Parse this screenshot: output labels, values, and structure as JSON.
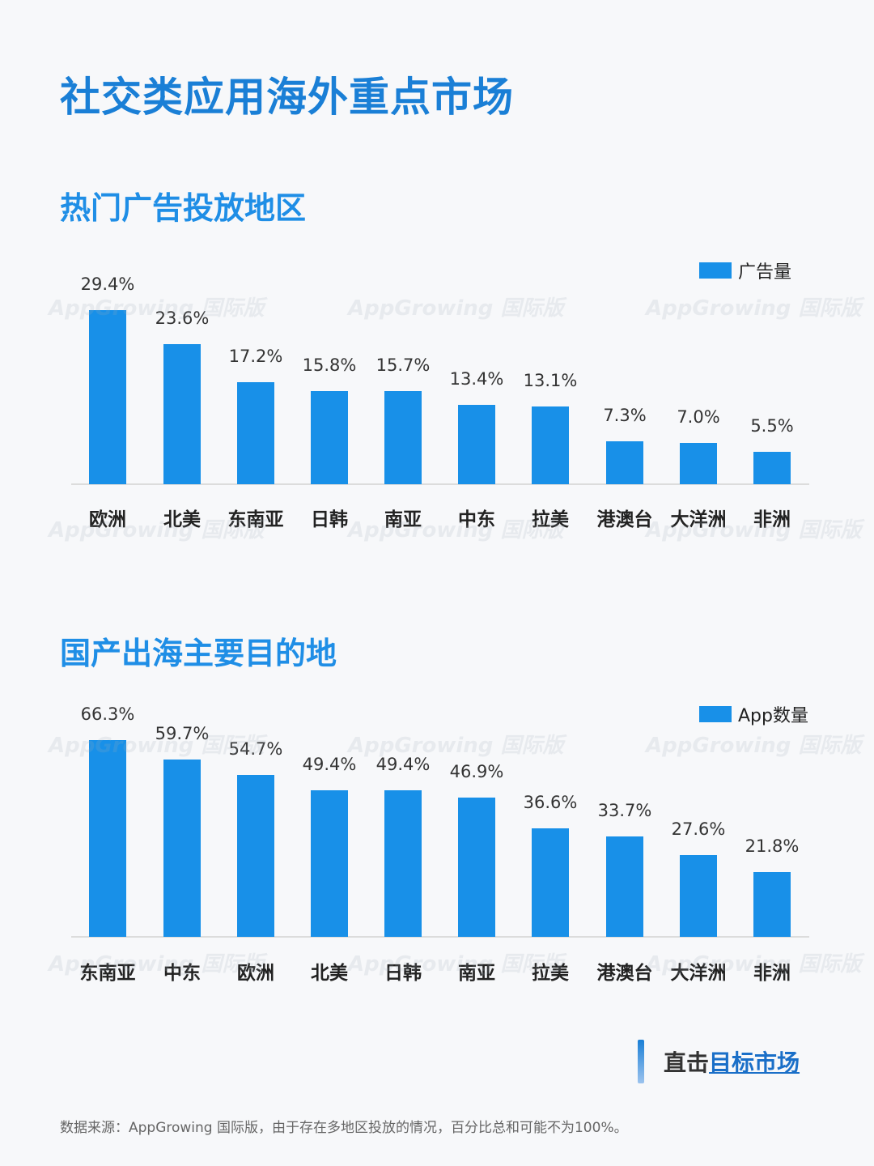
{
  "title": "社交类应用海外重点市场",
  "watermark": "AppGrowing 国际版",
  "chart_data": [
    {
      "type": "bar",
      "title": "热门广告投放地区",
      "categories": [
        "欧洲",
        "北美",
        "东南亚",
        "日韩",
        "南亚",
        "中东",
        "拉美",
        "港澳台",
        "大洋洲",
        "非洲"
      ],
      "series": [
        {
          "name": "广告量",
          "values": [
            29.4,
            23.6,
            17.2,
            15.8,
            15.7,
            13.4,
            13.1,
            7.3,
            7.0,
            5.5
          ]
        }
      ],
      "value_labels": [
        "29.4%",
        "23.6%",
        "17.2%",
        "15.8%",
        "15.7%",
        "13.4%",
        "13.1%",
        "7.3%",
        "7.0%",
        "5.5%"
      ],
      "unit": "%",
      "legend": "top-right",
      "grid": false,
      "color": "#1890e8"
    },
    {
      "type": "bar",
      "title": "国产出海主要目的地",
      "categories": [
        "东南亚",
        "中东",
        "欧洲",
        "北美",
        "日韩",
        "南亚",
        "拉美",
        "港澳台",
        "大洋洲",
        "非洲"
      ],
      "series": [
        {
          "name": "App数量",
          "values": [
            66.3,
            59.7,
            54.7,
            49.4,
            49.4,
            46.9,
            36.6,
            33.7,
            27.6,
            21.8
          ]
        }
      ],
      "value_labels": [
        "66.3%",
        "59.7%",
        "54.7%",
        "49.4%",
        "49.4%",
        "46.9%",
        "36.6%",
        "33.7%",
        "27.6%",
        "21.8%"
      ],
      "unit": "%",
      "legend": "top-right",
      "grid": false,
      "color": "#1890e8"
    }
  ],
  "cta": {
    "part1": "直击",
    "part2": "目标市场"
  },
  "footnote": "数据来源：AppGrowing 国际版，由于存在多地区投放的情况，百分比总和可能不为100%。"
}
